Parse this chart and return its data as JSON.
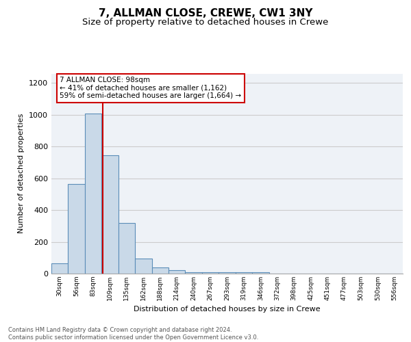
{
  "title": "7, ALLMAN CLOSE, CREWE, CW1 3NY",
  "subtitle": "Size of property relative to detached houses in Crewe",
  "xlabel": "Distribution of detached houses by size in Crewe",
  "ylabel": "Number of detached properties",
  "bar_labels": [
    "30sqm",
    "56sqm",
    "83sqm",
    "109sqm",
    "135sqm",
    "162sqm",
    "188sqm",
    "214sqm",
    "240sqm",
    "267sqm",
    "293sqm",
    "319sqm",
    "346sqm",
    "372sqm",
    "398sqm",
    "425sqm",
    "451sqm",
    "477sqm",
    "503sqm",
    "530sqm",
    "556sqm"
  ],
  "bar_values": [
    65,
    565,
    1010,
    745,
    320,
    95,
    40,
    22,
    10,
    10,
    10,
    10,
    10,
    0,
    0,
    0,
    0,
    0,
    0,
    0,
    0
  ],
  "bar_color": "#c9d9e8",
  "bar_edge_color": "#5b8db8",
  "grid_color": "#cccccc",
  "background_color": "#eef2f7",
  "annotation_text": "7 ALLMAN CLOSE: 98sqm\n← 41% of detached houses are smaller (1,162)\n59% of semi-detached houses are larger (1,664) →",
  "annotation_box_color": "#ffffff",
  "annotation_box_edge": "#cc0000",
  "footer_text": "Contains HM Land Registry data © Crown copyright and database right 2024.\nContains public sector information licensed under the Open Government Licence v3.0.",
  "ylim": [
    0,
    1260
  ],
  "title_fontsize": 11,
  "subtitle_fontsize": 9.5
}
